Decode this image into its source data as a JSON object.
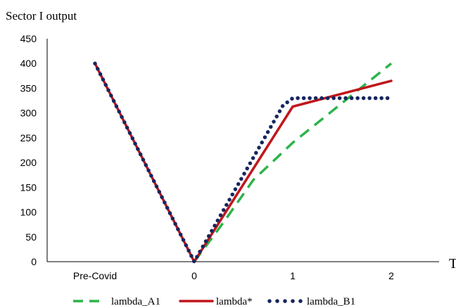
{
  "chart_data": {
    "type": "line",
    "ylabel": "Sector I output",
    "xlabel": "T",
    "categories": [
      "Pre-Covid",
      "0",
      "1",
      "2"
    ],
    "ylim": [
      0,
      450
    ],
    "yticks": [
      0,
      50,
      100,
      150,
      200,
      250,
      300,
      350,
      400,
      450
    ],
    "grid": false,
    "legend_position": "bottom",
    "series": [
      {
        "name": "lambda_A1",
        "style": "dashed",
        "color": "#2db34a",
        "points": [
          [
            1,
            0
          ],
          [
            1.3,
            80
          ],
          [
            1.6,
            165
          ],
          [
            2,
            240
          ],
          [
            2.5,
            320
          ],
          [
            3,
            400
          ]
        ]
      },
      {
        "name": "lambda*",
        "style": "solid",
        "color": "#c0161c",
        "points": [
          [
            0,
            400
          ],
          [
            1,
            0
          ],
          [
            2,
            313
          ],
          [
            3,
            365
          ]
        ]
      },
      {
        "name": "lambda_B1",
        "style": "dotted",
        "color": "#16265e",
        "points": [
          [
            0,
            400
          ],
          [
            1,
            0
          ],
          [
            1.9,
            315
          ],
          [
            2,
            330
          ],
          [
            3,
            330
          ]
        ]
      }
    ]
  }
}
